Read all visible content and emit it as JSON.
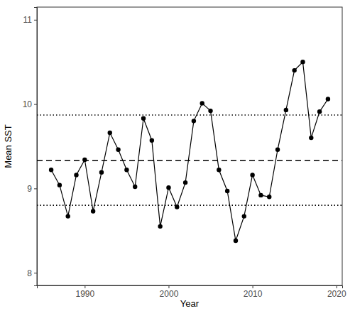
{
  "chart_data": {
    "type": "line",
    "x_label": "Year",
    "y_label": "Mean SST",
    "x": [
      1986,
      1987,
      1988,
      1989,
      1990,
      1991,
      1992,
      1993,
      1994,
      1995,
      1996,
      1997,
      1998,
      1999,
      2000,
      2001,
      2002,
      2003,
      2004,
      2005,
      2006,
      2007,
      2008,
      2009,
      2010,
      2011,
      2012,
      2013,
      2014,
      2015,
      2016,
      2017,
      2018,
      2019
    ],
    "values": [
      9.22,
      9.04,
      8.67,
      9.16,
      9.34,
      8.73,
      9.19,
      9.66,
      9.46,
      9.22,
      9.02,
      9.83,
      9.57,
      8.55,
      9.01,
      8.78,
      9.07,
      9.8,
      10.01,
      9.92,
      9.22,
      8.97,
      8.38,
      8.67,
      9.16,
      8.92,
      8.9,
      9.46,
      9.93,
      10.4,
      10.5,
      9.6,
      9.91,
      10.06
    ],
    "color": "#000000",
    "marker": "circle",
    "line_style": "solid",
    "reference_lines": [
      {
        "value": 9.33,
        "line_style": "dashed"
      },
      {
        "value": 9.87,
        "line_style": "dotted"
      },
      {
        "value": 8.8,
        "line_style": "dotted"
      }
    ],
    "xlim": [
      1984.3,
      2020.7
    ],
    "xticks": [
      1990,
      2000,
      2010,
      2020
    ],
    "ylim": [
      7.85,
      11.15
    ],
    "yticks": [
      8,
      9,
      10,
      11
    ],
    "grid": false
  }
}
